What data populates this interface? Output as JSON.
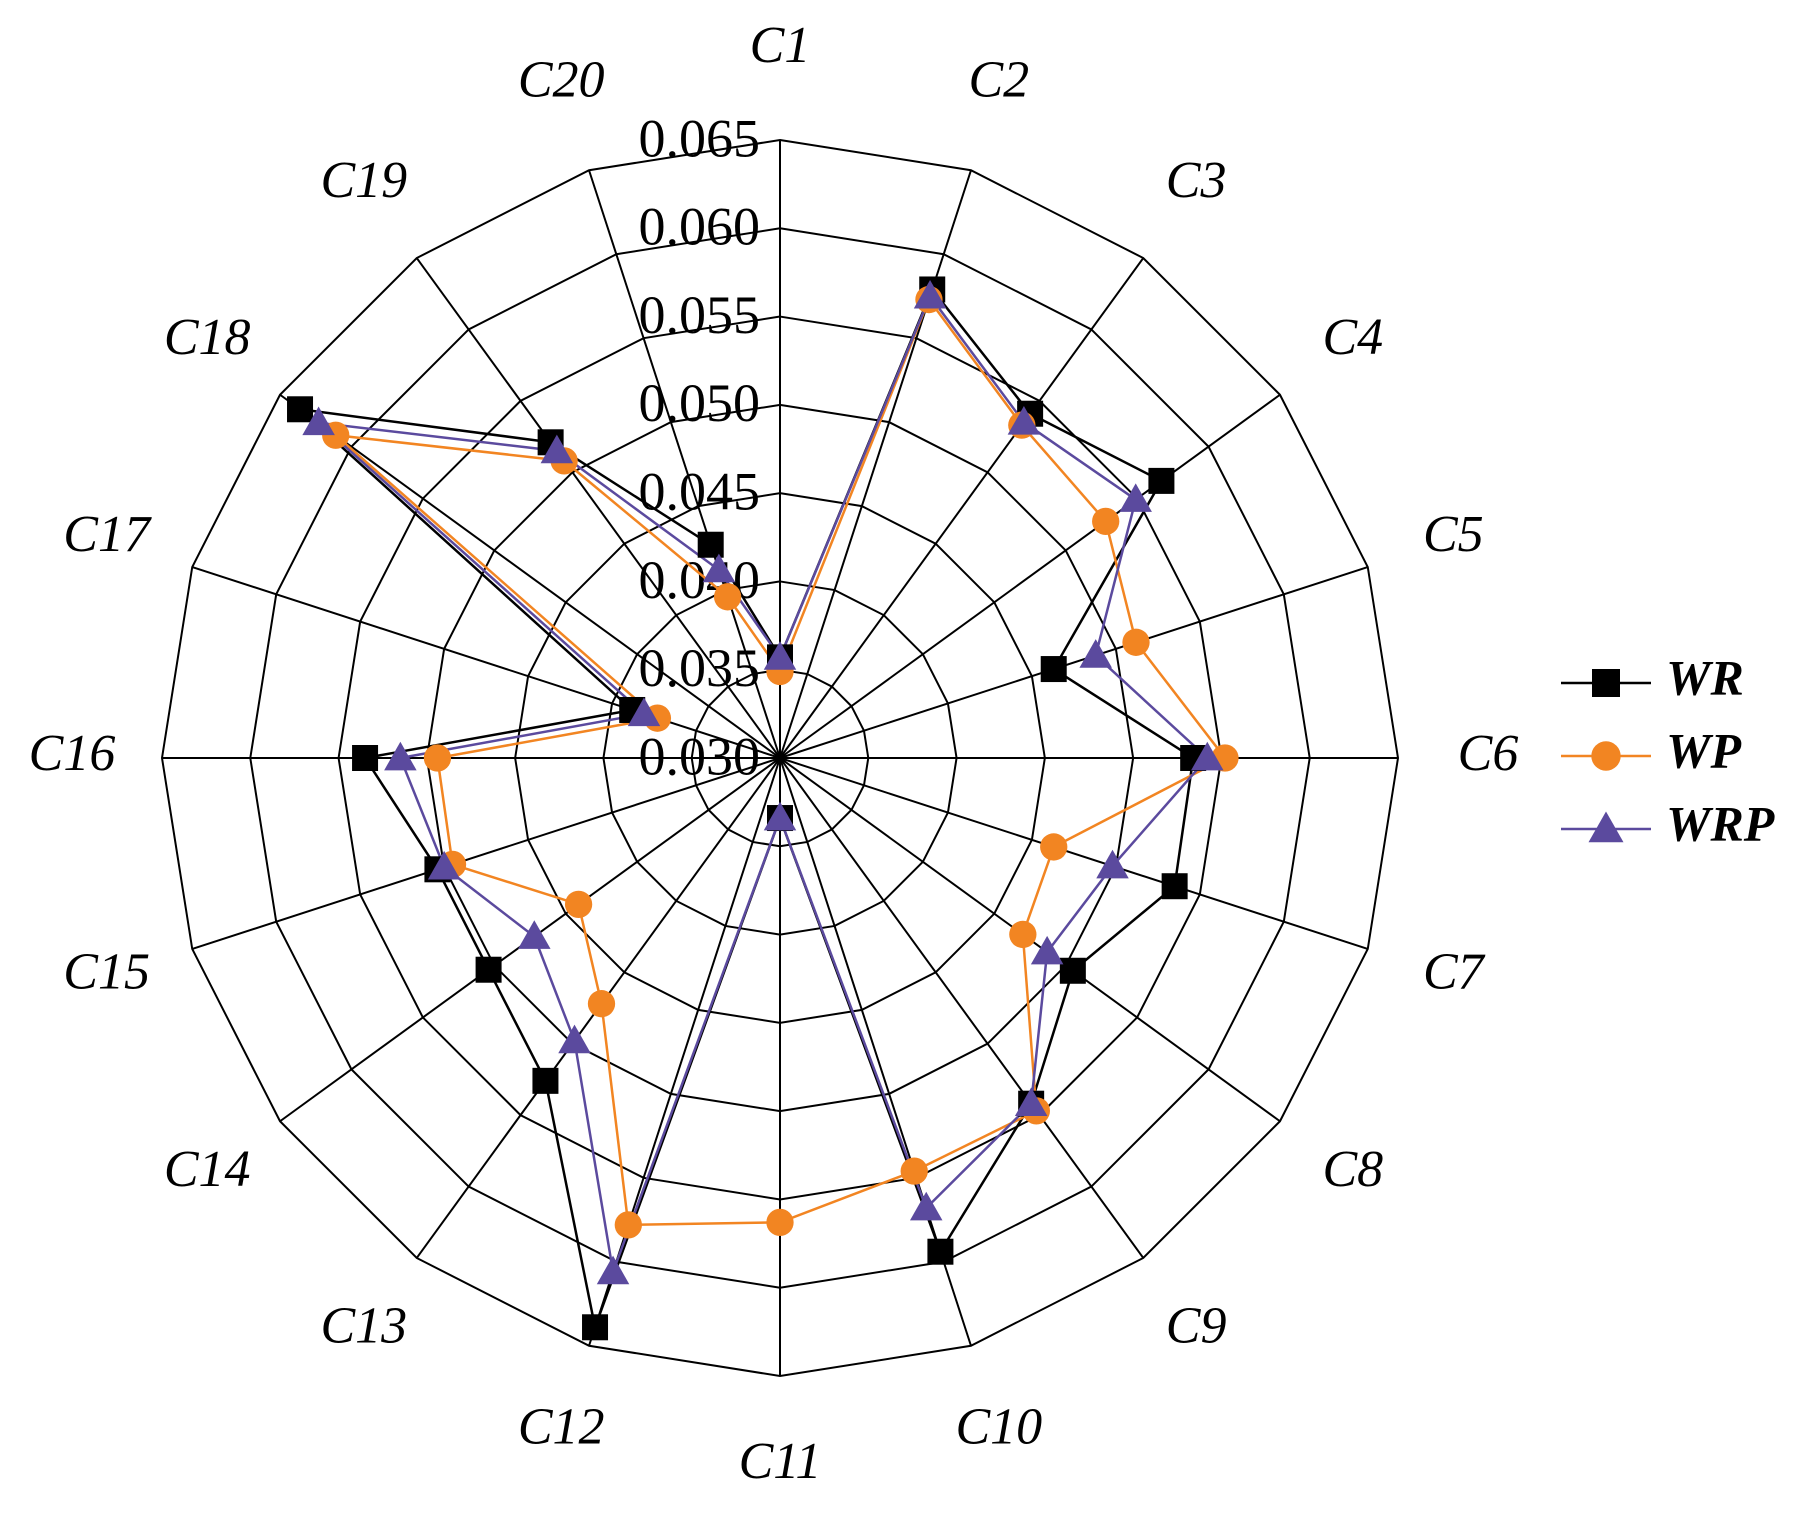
{
  "chart_data": {
    "type": "radar",
    "categories": [
      "C1",
      "C2",
      "C3",
      "C4",
      "C5",
      "C6",
      "C7",
      "C8",
      "C9",
      "C10",
      "C11",
      "C12",
      "C13",
      "C14",
      "C15",
      "C16",
      "C17",
      "C18",
      "C19",
      "C20"
    ],
    "ylim": [
      0.03,
      0.065
    ],
    "yticks": [
      {
        "value": 0.03,
        "label": "0.030"
      },
      0.035,
      {
        "value": 0.04,
        "label": "0.040"
      },
      0.045,
      {
        "value": 0.05,
        "label": "0.050"
      },
      0.055,
      {
        "value": 0.06,
        "label": "0.060"
      },
      0.065
    ],
    "grid": true,
    "legend": "right",
    "series": [
      {
        "name": "WR",
        "color": "#000000",
        "marker": "square",
        "values": [
          0.0357,
          0.0579,
          0.0541,
          0.0567,
          0.0463,
          0.0534,
          0.0535,
          0.0505,
          0.0542,
          0.0594,
          0.0334,
          0.0639,
          0.0526,
          0.0504,
          0.0504,
          0.0535,
          0.0388,
          0.0636,
          0.0521,
          0.0427
        ]
      },
      {
        "name": "WP",
        "color": "#f28522",
        "marker": "circle",
        "values": [
          0.0349,
          0.0573,
          0.0533,
          0.0528,
          0.0512,
          0.0552,
          0.0463,
          0.047,
          0.0547,
          0.0546,
          0.0563,
          0.0578,
          0.0472,
          0.0441,
          0.0495,
          0.0494,
          0.0373,
          0.0611,
          0.0508,
          0.0396
        ]
      },
      {
        "name": "WRP",
        "color": "#5b4a9e",
        "marker": "triangle",
        "values": [
          0.0357,
          0.0575,
          0.0535,
          0.0549,
          0.0488,
          0.0542,
          0.0498,
          0.0487,
          0.0542,
          0.0568,
          0.0334,
          0.0606,
          0.0498,
          0.0472,
          0.05,
          0.0515,
          0.0381,
          0.0623,
          0.0515,
          0.0412
        ]
      }
    ]
  }
}
